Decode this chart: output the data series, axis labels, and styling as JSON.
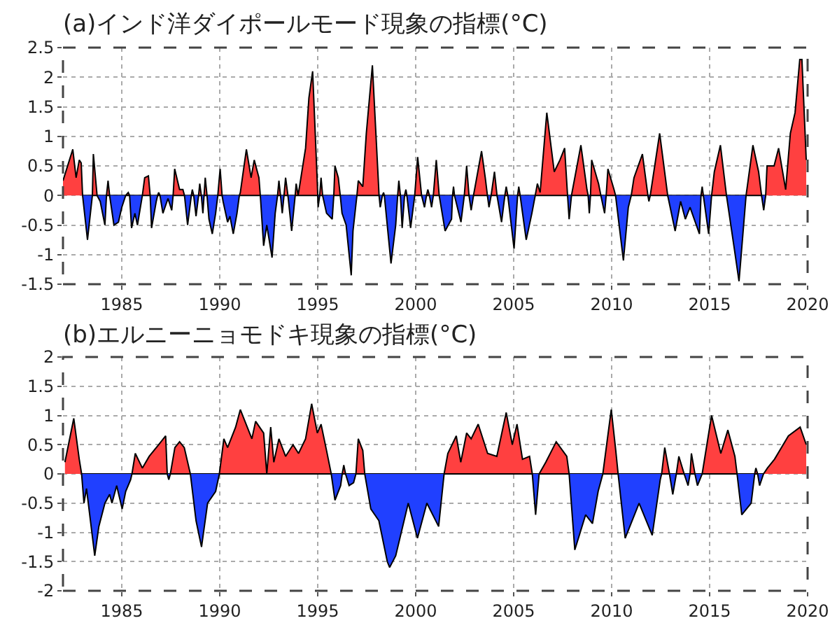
{
  "chart_data": [
    {
      "type": "area",
      "title": "(a)インド洋ダイポールモード現象の指標(°C)",
      "xlim": [
        1982,
        2020
      ],
      "xticks": [
        1985,
        1990,
        1995,
        2000,
        2005,
        2010,
        2015,
        2020
      ],
      "ylim": [
        -1.5,
        2.5
      ],
      "yticks": [
        -1.5,
        -1,
        -0.5,
        0,
        0.5,
        1,
        1.5,
        2,
        2.5
      ],
      "grid": true,
      "series": [
        {
          "color": "#ff4040",
          "x": [
            1982.0,
            1982.5,
            1982.67,
            1982.83,
            1982.93,
            1983.0,
            1983.5,
            1983.55,
            1983.74,
            1984.22,
            1984.3,
            1984.38,
            1985.2,
            1985.33,
            1985.4,
            1986.05,
            1986.17,
            1986.36,
            1986.45,
            1986.83,
            1986.88,
            1986.95,
            1987.62,
            1987.7,
            1987.95,
            1988.12,
            1988.2,
            1988.55,
            1988.6,
            1988.67,
            1988.92,
            1988.98,
            1989.06,
            1989.2,
            1989.26,
            1989.35,
            1989.9,
            1990.02,
            1990.12,
            1991.0,
            1991.05,
            1991.36,
            1991.6,
            1991.76,
            1992.0,
            1992.07,
            1992.95,
            1993.02,
            1993.1,
            1993.28,
            1993.36,
            1993.48,
            1993.85,
            1993.9,
            1994.0,
            1994.38,
            1994.55,
            1994.74,
            1994.98,
            1995.0,
            1995.1,
            1995.17,
            1995.25,
            1995.82,
            1995.88,
            1996.05,
            1996.15,
            1997.0,
            1997.07,
            1997.3,
            1997.48,
            1997.79,
            1998.07,
            1998.13,
            1998.3,
            1998.36,
            1998.4,
            1999.08,
            1999.14,
            1999.22,
            1999.43,
            1999.5,
            1999.55,
            1999.95,
            2000.1,
            2000.3,
            2000.55,
            2000.62,
            2000.7,
            2000.9,
            2001.05,
            2001.2,
            2001.88,
            2001.93,
            2001.98,
            2002.48,
            2002.6,
            2002.72,
            2002.95,
            2003.36,
            2003.55,
            2003.66,
            2003.85,
            2004.02,
            2004.15,
            2004.55,
            2004.62,
            2004.7,
            2005.2,
            2005.26,
            2005.33,
            2006.1,
            2006.21,
            2006.35,
            2006.69,
            2007.07,
            2007.36,
            2007.6,
            2007.75,
            2007.95,
            2008.43,
            2008.74,
            2008.8,
            2008.92,
            2008.98,
            2009.33,
            2009.45,
            2009.72,
            2009.81,
            2010.12,
            2010.2,
            2011.0,
            2011.14,
            2011.57,
            2011.85,
            2011.97,
            2012.45,
            2012.86,
            2014.56,
            2014.62,
            2014.68,
            2015.1,
            2015.24,
            2015.55,
            2015.86,
            2016.86,
            2017.21,
            2017.5,
            2017.65,
            2017.86,
            2017.93,
            2018.29,
            2018.52,
            2018.88,
            2019.12,
            2019.36,
            2019.6,
            2019.71,
            2019.93
          ],
          "values": [
            0.25,
            0.78,
            0.3,
            0.6,
            0.55,
            0,
            0,
            0.7,
            0,
            0,
            0.25,
            0,
            0,
            0.05,
            0,
            0,
            0.3,
            0.33,
            0,
            0,
            0.05,
            0,
            0,
            0.45,
            0.1,
            0.1,
            0,
            0,
            0.1,
            0,
            0,
            0.2,
            0,
            0,
            0.3,
            0,
            0,
            0.45,
            0,
            0,
            0.05,
            0.78,
            0.3,
            0.6,
            0.3,
            0,
            0,
            0.25,
            0,
            0,
            0.3,
            0,
            0,
            0.2,
            0,
            0.8,
            1.65,
            2.1,
            0.2,
            0,
            0,
            0.3,
            0,
            0,
            0.5,
            0.3,
            0,
            0,
            0.25,
            0.15,
            1.05,
            2.2,
            0.4,
            0,
            0,
            0.05,
            0,
            0,
            0.25,
            0,
            0,
            0.1,
            0,
            0,
            0.65,
            0,
            0,
            0.1,
            0,
            0,
            0.6,
            0,
            0,
            0.15,
            0,
            0,
            0.5,
            0,
            0,
            0.75,
            0.3,
            0,
            0,
            0.4,
            0,
            0,
            0.15,
            0,
            0,
            0.15,
            0,
            0,
            0.2,
            0.05,
            1.4,
            0.4,
            0.6,
            0.8,
            0,
            0,
            0.85,
            0.1,
            0,
            0,
            0.6,
            0.2,
            0,
            0,
            0.45,
            0.1,
            0,
            0,
            0.3,
            0.7,
            0,
            0,
            1.05,
            0,
            0,
            0.15,
            0,
            0,
            0.4,
            0.85,
            0,
            0,
            0.85,
            0.4,
            0,
            0,
            0.5,
            0.5,
            0.8,
            0.1,
            1.05,
            1.4,
            2.3,
            2.3,
            0.6
          ]
        },
        {
          "color": "#2040ff",
          "x": [
            1983.0,
            1983.25,
            1983.5,
            1983.74,
            1983.9,
            1984.14,
            1984.22,
            1984.38,
            1984.6,
            1984.83,
            1985.0,
            1985.2,
            1985.4,
            1985.5,
            1985.67,
            1985.8,
            1986.05,
            1986.45,
            1986.52,
            1986.76,
            1986.83,
            1986.95,
            1987.1,
            1987.36,
            1987.55,
            1987.62,
            1988.2,
            1988.36,
            1988.55,
            1988.67,
            1988.79,
            1988.92,
            1989.06,
            1989.14,
            1989.2,
            1989.35,
            1989.45,
            1989.62,
            1989.79,
            1989.9,
            1990.12,
            1990.17,
            1990.4,
            1990.52,
            1990.69,
            1990.88,
            1991.0,
            1992.07,
            1992.24,
            1992.4,
            1992.67,
            1992.83,
            1992.95,
            1993.1,
            1993.19,
            1993.28,
            1993.48,
            1993.67,
            1993.85,
            1994.0,
            1995.0,
            1995.02,
            1995.1,
            1995.25,
            1995.45,
            1995.74,
            1995.82,
            1996.15,
            1996.24,
            1996.45,
            1996.71,
            1996.8,
            1997.0,
            1998.13,
            1998.19,
            1998.3,
            1998.4,
            1998.74,
            1998.98,
            1999.08,
            1999.22,
            1999.31,
            1999.43,
            1999.55,
            1999.74,
            1999.95,
            2000.3,
            2000.45,
            2000.55,
            2000.7,
            2000.81,
            2000.9,
            2001.2,
            2001.5,
            2001.83,
            2001.88,
            2001.98,
            2002.31,
            2002.48,
            2002.72,
            2002.83,
            2002.95,
            2003.66,
            2003.74,
            2003.85,
            2004.15,
            2004.38,
            2004.55,
            2004.7,
            2005.02,
            2005.2,
            2005.33,
            2005.64,
            2005.93,
            2006.1,
            2007.75,
            2007.83,
            2007.95,
            2008.8,
            2008.86,
            2008.92,
            2009.45,
            2009.64,
            2009.72,
            2010.2,
            2010.6,
            2010.85,
            2011.0,
            2011.85,
            2011.9,
            2011.97,
            2012.86,
            2013.24,
            2013.52,
            2013.76,
            2014.0,
            2014.48,
            2014.56,
            2014.68,
            2014.95,
            2015.1,
            2015.86,
            2016.26,
            2016.5,
            2016.86,
            2017.65,
            2017.76,
            2017.86
          ],
          "values": [
            0,
            -0.75,
            0,
            0,
            -0.1,
            -0.5,
            0,
            0,
            -0.5,
            -0.45,
            -0.2,
            0,
            0,
            -0.55,
            -0.3,
            -0.5,
            0,
            0,
            -0.55,
            -0.1,
            0,
            0,
            -0.3,
            -0.05,
            -0.25,
            0,
            0,
            -0.5,
            0,
            0,
            -0.35,
            0,
            0,
            -0.3,
            0,
            0,
            -0.4,
            -0.65,
            -0.3,
            0,
            0,
            -0.1,
            -0.45,
            -0.35,
            -0.65,
            -0.3,
            0,
            0,
            -0.85,
            -0.5,
            -1.05,
            -0.3,
            0,
            0,
            -0.3,
            0,
            0,
            -0.6,
            0,
            0,
            0,
            -0.2,
            0,
            0,
            -0.3,
            -0.4,
            0,
            0,
            -0.3,
            -0.5,
            -1.35,
            -0.6,
            0,
            0,
            -0.2,
            0,
            0,
            -1.15,
            -0.5,
            0,
            0,
            -0.55,
            0,
            0,
            -0.55,
            0,
            0,
            -0.2,
            0,
            0,
            -0.2,
            0,
            0,
            -0.6,
            -0.4,
            0,
            0,
            -0.45,
            0,
            0,
            -0.25,
            0,
            0,
            -0.2,
            0,
            0,
            -0.45,
            0,
            0,
            -0.9,
            0,
            0,
            -0.75,
            -0.3,
            0,
            0,
            -0.4,
            0,
            0,
            -0.3,
            0,
            0,
            -0.3,
            0,
            0,
            -1.1,
            -0.2,
            0,
            0,
            -0.1,
            0,
            0,
            -0.6,
            -0.1,
            -0.4,
            -0.2,
            -0.65,
            0,
            0,
            -0.65,
            0,
            0,
            -0.9,
            -1.45,
            0,
            0,
            -0.25,
            0
          ]
        }
      ]
    },
    {
      "type": "area",
      "title": "(b)エルニーニョモドキ現象の指標(°C)",
      "xlim": [
        1982,
        2020
      ],
      "xticks": [
        1985,
        1990,
        1995,
        2000,
        2005,
        2010,
        2015,
        2020
      ],
      "ylim": [
        -2,
        2
      ],
      "yticks": [
        -2,
        -1.5,
        -1,
        -0.5,
        0,
        0.5,
        1,
        1.5,
        2
      ],
      "grid": true,
      "series": [
        {
          "color": "#ff4040",
          "x": [
            1982.1,
            1982.55,
            1982.83,
            1982.95,
            1985.52,
            1985.69,
            1986.05,
            1986.4,
            1986.88,
            1987.24,
            1987.32,
            1987.48,
            1987.71,
            1987.95,
            1988.19,
            1988.5,
            1989.98,
            1990.21,
            1990.4,
            1990.81,
            1991.05,
            1991.64,
            1991.83,
            1992.24,
            1992.4,
            1992.6,
            1992.76,
            1993.02,
            1993.36,
            1993.74,
            1994.02,
            1994.38,
            1994.69,
            1994.98,
            1995.17,
            1995.45,
            1995.69,
            1996.25,
            1996.33,
            1996.42,
            1996.95,
            1997.07,
            1997.3,
            1997.4,
            2001.45,
            2001.64,
            2002.07,
            2002.3,
            2002.6,
            2002.83,
            2003.19,
            2003.67,
            2004.14,
            2004.62,
            2004.93,
            2005.17,
            2005.45,
            2005.81,
            2005.95,
            2006.3,
            2006.64,
            2007.17,
            2007.71,
            2007.83,
            2009.55,
            2009.98,
            2010.21,
            2010.33,
            2012.55,
            2012.71,
            2012.95,
            2013.3,
            2013.43,
            2013.7,
            2014.0,
            2014.07,
            2014.25,
            2014.62,
            2015.1,
            2015.57,
            2015.93,
            2016.29,
            2016.4,
            2017.3,
            2017.36,
            2017.45,
            2017.75,
            2017.95,
            2018.31,
            2019.02,
            2019.62,
            2019.93
          ],
          "values": [
            0.2,
            0.95,
            0.25,
            0,
            0,
            0.35,
            0.1,
            0.3,
            0.5,
            0.65,
            0,
            0,
            0.45,
            0.55,
            0.45,
            0,
            0,
            0.6,
            0.45,
            0.8,
            1.1,
            0.6,
            0.9,
            0.7,
            0,
            0.8,
            0.2,
            0.6,
            0.3,
            0.5,
            0.35,
            0.6,
            1.2,
            0.7,
            0.85,
            0.4,
            0,
            0,
            0.15,
            0,
            0,
            0.6,
            0.4,
            0,
            0,
            0.35,
            0.65,
            0.2,
            0.7,
            0.6,
            0.85,
            0.35,
            0.3,
            1.05,
            0.5,
            0.85,
            0.25,
            0.3,
            0,
            0,
            0.2,
            0.55,
            0.3,
            0,
            0,
            1.1,
            0.4,
            0,
            0,
            0.45,
            0,
            0,
            0.3,
            0,
            0,
            0.35,
            0,
            0,
            1.0,
            0.35,
            0.75,
            0.3,
            0,
            0,
            0.1,
            0,
            0,
            0.1,
            0.25,
            0.65,
            0.8,
            0.5
          ]
        },
        {
          "color": "#2040ff",
          "x": [
            1982.95,
            1983.07,
            1983.2,
            1983.62,
            1983.83,
            1984.14,
            1984.38,
            1984.5,
            1984.74,
            1985.02,
            1985.2,
            1985.45,
            1985.52,
            1987.32,
            1987.4,
            1987.48,
            1988.5,
            1988.79,
            1989.07,
            1989.38,
            1989.79,
            1989.98,
            1992.4,
            1995.69,
            1995.88,
            1996.17,
            1996.25,
            1996.42,
            1996.6,
            1996.83,
            1996.95,
            1997.4,
            1997.71,
            1998.12,
            1998.55,
            1998.67,
            1998.98,
            1999.62,
            2000.09,
            2000.57,
            2001.17,
            2001.45,
            2005.95,
            2006.12,
            2006.3,
            2007.83,
            2008.12,
            2008.67,
            2009.02,
            2009.31,
            2009.55,
            2010.33,
            2010.69,
            2011.4,
            2012.07,
            2012.48,
            2012.55,
            2012.95,
            2013.12,
            2013.3,
            2013.7,
            2013.9,
            2014.0,
            2014.25,
            2014.38,
            2014.62,
            2016.4,
            2016.64,
            2017.12,
            2017.3,
            2017.45,
            2017.55,
            2017.75
          ],
          "values": [
            0,
            -0.5,
            -0.25,
            -1.4,
            -0.9,
            -0.5,
            -0.35,
            -0.5,
            -0.2,
            -0.6,
            -0.3,
            -0.1,
            0,
            0,
            -0.1,
            0,
            0,
            -0.8,
            -1.25,
            -0.5,
            -0.3,
            0,
            0,
            0,
            -0.45,
            -0.2,
            0,
            0,
            -0.2,
            -0.15,
            0,
            0,
            -0.6,
            -0.8,
            -1.5,
            -1.6,
            -1.4,
            -0.5,
            -1.1,
            -0.5,
            -0.9,
            0,
            0,
            -0.7,
            0,
            0,
            -1.3,
            -0.7,
            -0.85,
            -0.3,
            0,
            0,
            -1.1,
            -0.5,
            -1.05,
            -0.1,
            0,
            0,
            -0.35,
            0,
            0,
            -0.2,
            0,
            0,
            -0.2,
            0,
            0,
            -0.7,
            -0.5,
            0,
            0,
            -0.2,
            0
          ]
        }
      ]
    }
  ]
}
